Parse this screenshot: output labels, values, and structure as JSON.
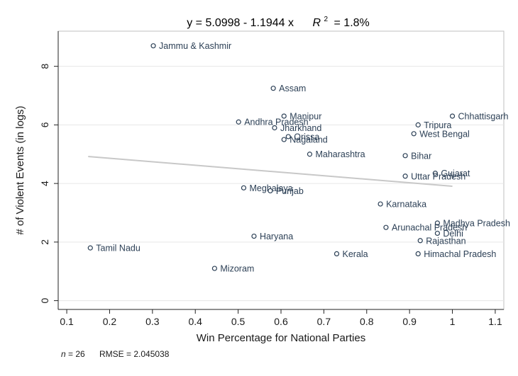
{
  "chart_data": {
    "type": "scatter",
    "title_prefix": "y = 5.0998 - 1.1944 x",
    "r2_label": "R",
    "r2_sup": "2",
    "r2_value": "= 1.8%",
    "xlabel": "Win Percentage for National Parties",
    "ylabel": "# of Violent Events (in logs)",
    "xlim": [
      0.08,
      1.12
    ],
    "ylim": [
      -0.3,
      9.2
    ],
    "xticks": [
      0.1,
      0.2,
      0.3,
      0.4,
      0.5,
      0.6,
      0.7,
      0.8,
      0.9,
      1,
      1.1
    ],
    "xtick_labels": [
      "0.1",
      "0.2",
      "0.3",
      "0.4",
      "0.5",
      "0.6",
      "0.7",
      "0.8",
      "0.9",
      "1",
      "1.1"
    ],
    "yticks": [
      0,
      2,
      4,
      6,
      8
    ],
    "ytick_labels": [
      "0",
      "2",
      "4",
      "6",
      "8"
    ],
    "fit_line": {
      "intercept": 5.0998,
      "slope": -1.1944,
      "x_range": [
        0.15,
        1.0
      ]
    },
    "points": [
      {
        "label": "Jammu & Kashmir",
        "x": 0.302,
        "y": 8.7
      },
      {
        "label": "Assam",
        "x": 0.582,
        "y": 7.25
      },
      {
        "label": "Manipur",
        "x": 0.607,
        "y": 6.3
      },
      {
        "label": "Andhra Pradesh",
        "x": 0.501,
        "y": 6.1
      },
      {
        "label": "Jharkhand",
        "x": 0.585,
        "y": 5.9
      },
      {
        "label": "Orissa",
        "x": 0.617,
        "y": 5.6
      },
      {
        "label": "Nagaland",
        "x": 0.607,
        "y": 5.5
      },
      {
        "label": "Maharashtra",
        "x": 0.667,
        "y": 5.0
      },
      {
        "label": "Chhattisgarh",
        "x": 1.0,
        "y": 6.3
      },
      {
        "label": "Tripura",
        "x": 0.92,
        "y": 6.0
      },
      {
        "label": "West Bengal",
        "x": 0.91,
        "y": 5.7
      },
      {
        "label": "Bihar",
        "x": 0.89,
        "y": 4.95
      },
      {
        "label": "Gujarat",
        "x": 0.96,
        "y": 4.35
      },
      {
        "label": "Uttar Pradesh",
        "x": 0.89,
        "y": 4.25
      },
      {
        "label": "Meghalaya",
        "x": 0.513,
        "y": 3.85
      },
      {
        "label": "Punjab",
        "x": 0.575,
        "y": 3.75
      },
      {
        "label": "Karnataka",
        "x": 0.832,
        "y": 3.3
      },
      {
        "label": "Madhya Pradesh",
        "x": 0.965,
        "y": 2.65
      },
      {
        "label": "Arunachal Pradesh",
        "x": 0.845,
        "y": 2.5
      },
      {
        "label": "Delhi",
        "x": 0.965,
        "y": 2.3
      },
      {
        "label": "Haryana",
        "x": 0.537,
        "y": 2.2
      },
      {
        "label": "Rajasthan",
        "x": 0.925,
        "y": 2.05
      },
      {
        "label": "Tamil Nadu",
        "x": 0.155,
        "y": 1.8
      },
      {
        "label": "Kerala",
        "x": 0.73,
        "y": 1.6
      },
      {
        "label": "Himachal Pradesh",
        "x": 0.92,
        "y": 1.6
      },
      {
        "label": "Mizoram",
        "x": 0.445,
        "y": 1.1
      }
    ]
  },
  "footer": {
    "n_label": "n",
    "n_value": "= 26",
    "rmse_text": "RMSE =  2.045038"
  }
}
